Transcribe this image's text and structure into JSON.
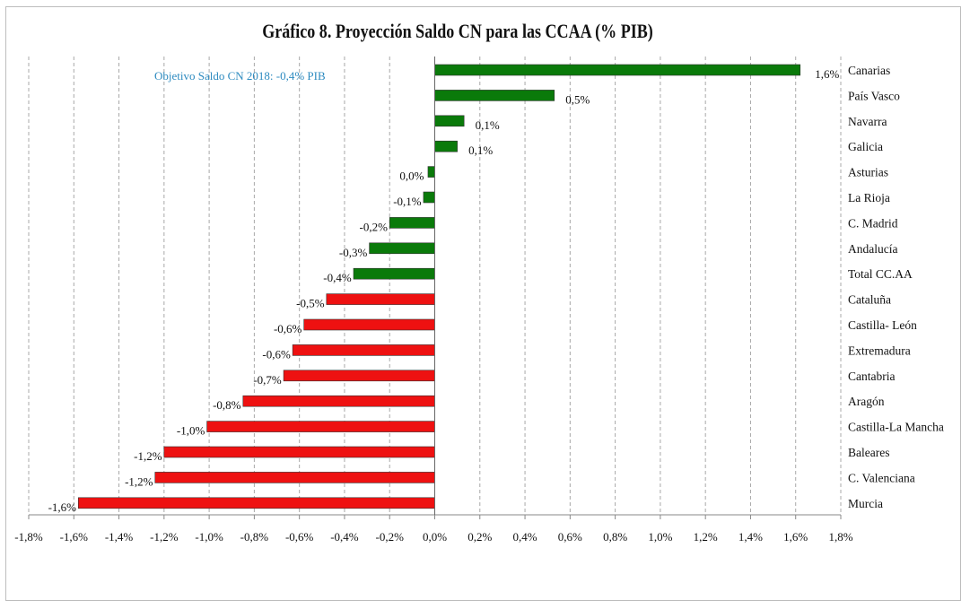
{
  "chart_data": {
    "type": "bar",
    "orientation": "horizontal",
    "title": "Gráfico 8. Proyección Saldo CN para las CCAA (% PIB)",
    "annotation": "Objetivo Saldo CN 2018: -0,4% PIB",
    "categories": [
      "Canarias",
      "País Vasco",
      "Navarra",
      "Galicia",
      "Asturias",
      "La Rioja",
      "C. Madrid",
      "Andalucía",
      "Total CC.AA",
      "Cataluña",
      "Castilla- León",
      "Extremadura",
      "Cantabria",
      "Aragón",
      "Castilla-La Mancha",
      "Baleares",
      "C. Valenciana",
      "Murcia"
    ],
    "values": [
      1.62,
      0.53,
      0.13,
      0.1,
      -0.03,
      -0.05,
      -0.2,
      -0.29,
      -0.36,
      -0.48,
      -0.58,
      -0.63,
      -0.67,
      -0.85,
      -1.01,
      -1.2,
      -1.24,
      -1.58
    ],
    "data_labels": [
      "1,6%",
      "0,5%",
      "0,1%",
      "0,1%",
      "0,0%",
      "-0,1%",
      "-0,2%",
      "-0,3%",
      "-0,4%",
      "-0,5%",
      "-0,6%",
      "-0,6%",
      "-0,7%",
      "-0,8%",
      "-1,0%",
      "-1,2%",
      "-1,2%",
      "-1,6%"
    ],
    "bar_colors": [
      "#0a7a0a",
      "#0a7a0a",
      "#0a7a0a",
      "#0a7a0a",
      "#0a7a0a",
      "#0a7a0a",
      "#0a7a0a",
      "#0a7a0a",
      "#0a7a0a",
      "#ee1111",
      "#ee1111",
      "#ee1111",
      "#ee1111",
      "#ee1111",
      "#ee1111",
      "#ee1111",
      "#ee1111",
      "#ee1111"
    ],
    "xlim": [
      -1.8,
      1.8
    ],
    "xticks": [
      -1.8,
      -1.6,
      -1.4,
      -1.2,
      -1.0,
      -0.8,
      -0.6,
      -0.4,
      -0.2,
      0.0,
      0.2,
      0.4,
      0.6,
      0.8,
      1.0,
      1.2,
      1.4,
      1.6,
      1.8
    ],
    "xtick_labels": [
      "-1,8%",
      "-1,6%",
      "-1,4%",
      "-1,2%",
      "-1,0%",
      "-0,8%",
      "-0,6%",
      "-0,4%",
      "-0,2%",
      "0,0%",
      "0,2%",
      "0,4%",
      "0,6%",
      "0,8%",
      "1,0%",
      "1,2%",
      "1,4%",
      "1,6%",
      "1,8%"
    ],
    "grid": "vertical-dashed",
    "annotation_color": "#2e8bc0",
    "category_labels_side": "right"
  }
}
